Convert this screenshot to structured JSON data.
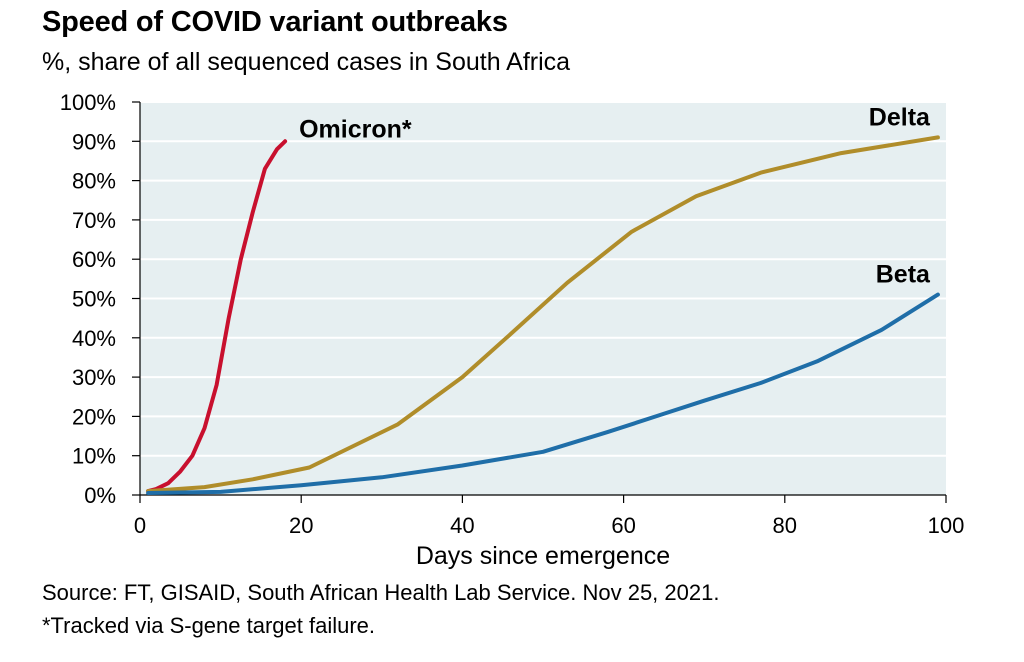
{
  "chart_data": {
    "type": "line",
    "title": "Speed of COVID variant outbreaks",
    "subtitle": "%, share of all sequenced cases in South Africa",
    "xlabel": "Days since emergence",
    "ylabel": "",
    "xlim": [
      0,
      100
    ],
    "ylim": [
      0,
      100
    ],
    "x_ticks": [
      0,
      20,
      40,
      60,
      80,
      100
    ],
    "y_ticks": [
      0,
      10,
      20,
      30,
      40,
      50,
      60,
      70,
      80,
      90,
      100
    ],
    "y_tick_labels": [
      "0%",
      "10%",
      "20%",
      "30%",
      "40%",
      "50%",
      "60%",
      "70%",
      "80%",
      "90%",
      "100%"
    ],
    "x_tick_labels": [
      "0",
      "20",
      "40",
      "60",
      "80",
      "100"
    ],
    "grid": "horizontal",
    "background": "#e6eff1",
    "series": [
      {
        "name": "Omicron*",
        "color": "#c8102e",
        "x": [
          1,
          2,
          3.5,
          5,
          6.5,
          8,
          9.5,
          11,
          12.5,
          14,
          15.5,
          17,
          18
        ],
        "y": [
          1,
          1.5,
          3,
          6,
          10,
          17,
          28,
          45,
          60,
          72,
          83,
          88,
          90
        ]
      },
      {
        "name": "Delta",
        "color": "#b08d2a",
        "x": [
          1,
          8,
          14,
          21,
          32,
          40,
          46,
          53,
          61,
          69,
          77,
          87,
          99
        ],
        "y": [
          1,
          2,
          4,
          7,
          18,
          30,
          41,
          54,
          67,
          76,
          82,
          87,
          91
        ]
      },
      {
        "name": "Beta",
        "color": "#1f6ea8",
        "x": [
          1,
          10,
          20,
          30,
          40,
          50,
          58,
          64,
          70,
          77,
          84,
          92,
          99
        ],
        "y": [
          0.5,
          0.8,
          2.5,
          4.5,
          7.5,
          11,
          16,
          20,
          24,
          28.5,
          34,
          42,
          51
        ]
      }
    ]
  },
  "footer": {
    "source": "Source: FT, GISAID, South African Health Lab Service. Nov 25, 2021.",
    "footnote": "*Tracked via S-gene target failure."
  }
}
